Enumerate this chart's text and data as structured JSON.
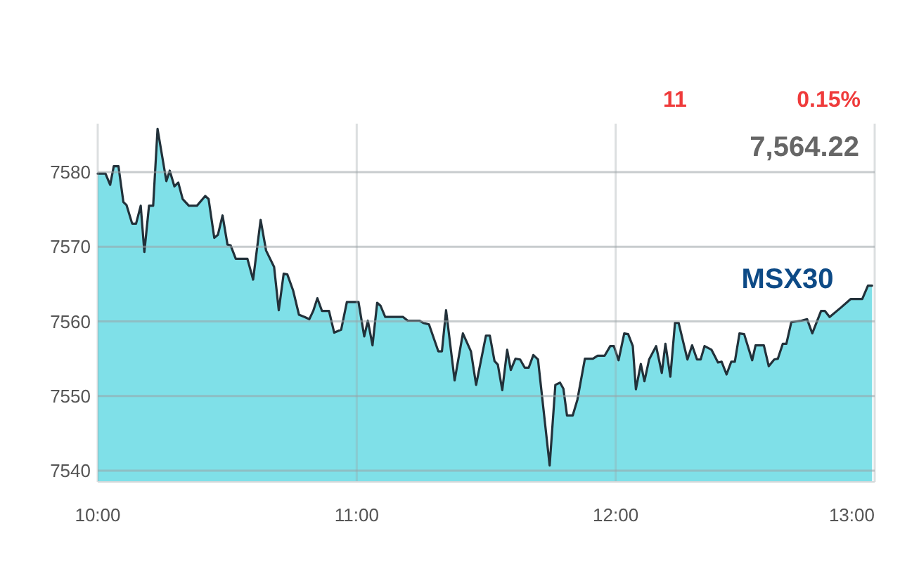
{
  "chart_data": {
    "type": "area",
    "title": "MSX30",
    "annotations": [
      "11",
      "0.15%",
      "7,564.22"
    ],
    "x": [
      10,
      10.03,
      10.048,
      10.062,
      10.08,
      10.099,
      10.111,
      10.133,
      10.148,
      10.166,
      10.18,
      10.198,
      10.214,
      10.231,
      10.265,
      10.278,
      10.296,
      10.311,
      10.328,
      10.352,
      10.383,
      10.415,
      10.428,
      10.45,
      10.464,
      10.482,
      10.501,
      10.513,
      10.533,
      10.578,
      10.6,
      10.629,
      10.65,
      10.681,
      10.699,
      10.718,
      10.732,
      10.754,
      10.777,
      10.799,
      10.817,
      10.832,
      10.848,
      10.866,
      10.893,
      10.913,
      10.94,
      10.962,
      11.007,
      11.029,
      11.043,
      11.061,
      11.079,
      11.092,
      11.11,
      11.179,
      11.197,
      11.242,
      11.257,
      11.279,
      11.315,
      11.329,
      11.345,
      11.378,
      11.41,
      11.441,
      11.461,
      11.499,
      11.514,
      11.532,
      11.545,
      11.562,
      11.581,
      11.595,
      11.613,
      11.631,
      11.649,
      11.664,
      11.682,
      11.7,
      11.745,
      11.767,
      11.785,
      11.798,
      11.812,
      11.834,
      11.852,
      11.881,
      11.912,
      11.93,
      11.957,
      11.979,
      11.993,
      12.011,
      12.033,
      12.048,
      12.066,
      12.078,
      12.097,
      12.111,
      12.129,
      12.156,
      12.178,
      12.192,
      12.211,
      12.229,
      12.243,
      12.277,
      12.295,
      12.314,
      12.328,
      12.343,
      12.37,
      12.395,
      12.409,
      12.428,
      12.446,
      12.46,
      12.478,
      12.496,
      12.527,
      12.54,
      12.572,
      12.591,
      12.612,
      12.626,
      12.645,
      12.659,
      12.678,
      12.717,
      12.739,
      12.759,
      12.793,
      12.808,
      12.826,
      12.871,
      12.907,
      12.952,
      12.974,
      12.99
    ],
    "series": [
      {
        "color": "#7fe0e8",
        "values": [
          7579.8,
          7579.8,
          7578.3,
          7580.8,
          7580.8,
          7576,
          7575.6,
          7573.1,
          7573.1,
          7575.5,
          7569.3,
          7575.5,
          7575.5,
          7585.8,
          7578.8,
          7580.2,
          7578.1,
          7578.6,
          7576.4,
          7575.5,
          7575.5,
          7576.8,
          7576.4,
          7571.2,
          7571.6,
          7574.2,
          7570.3,
          7570.2,
          7568.4,
          7568.4,
          7565.6,
          7573.6,
          7569.5,
          7567.3,
          7561.5,
          7566.4,
          7566.3,
          7564.2,
          7560.9,
          7560.6,
          7560.3,
          7561.4,
          7563.1,
          7561.4,
          7561.4,
          7558.5,
          7558.9,
          7562.6,
          7562.6,
          7558,
          7560.1,
          7556.8,
          7562.5,
          7562.1,
          7560.6,
          7560.6,
          7560.1,
          7560.1,
          7559.8,
          7559.6,
          7556,
          7556,
          7561.5,
          7552.1,
          7558.4,
          7556,
          7551.5,
          7558.1,
          7558.1,
          7554.7,
          7554.2,
          7550.8,
          7556.2,
          7553.5,
          7555,
          7554.9,
          7553.8,
          7553.8,
          7555.5,
          7554.9,
          7540.7,
          7551.5,
          7551.8,
          7551,
          7547.4,
          7547.4,
          7549.5,
          7555,
          7555,
          7555.4,
          7555.4,
          7556.7,
          7556.7,
          7554.8,
          7558.4,
          7558.3,
          7556.7,
          7550.9,
          7554.3,
          7552,
          7554.9,
          7556.7,
          7553.1,
          7557,
          7552.6,
          7559.8,
          7559.8,
          7554.9,
          7556.8,
          7554.9,
          7554.9,
          7556.7,
          7556.2,
          7554.5,
          7554.6,
          7552.9,
          7554.6,
          7554.6,
          7558.4,
          7558.3,
          7554.8,
          7556.8,
          7556.8,
          7554,
          7554.9,
          7555,
          7557,
          7557,
          7559.9,
          7560.1,
          7560.3,
          7558.4,
          7561.4,
          7561.4,
          7560.6,
          7561.9,
          7563,
          7563,
          7564.8,
          7564.8
        ]
      }
    ],
    "xlim": [
      10,
      13
    ],
    "xticks": [
      {
        "value": 10,
        "label": "10:00"
      },
      {
        "value": 11,
        "label": "11:00"
      },
      {
        "value": 12,
        "label": "12:00"
      },
      {
        "value": 13,
        "label": "13:00"
      }
    ],
    "ylim": [
      7538.5,
      7586.5
    ],
    "yticks": [
      7540,
      7550,
      7560,
      7570,
      7580
    ],
    "grid": true
  }
}
